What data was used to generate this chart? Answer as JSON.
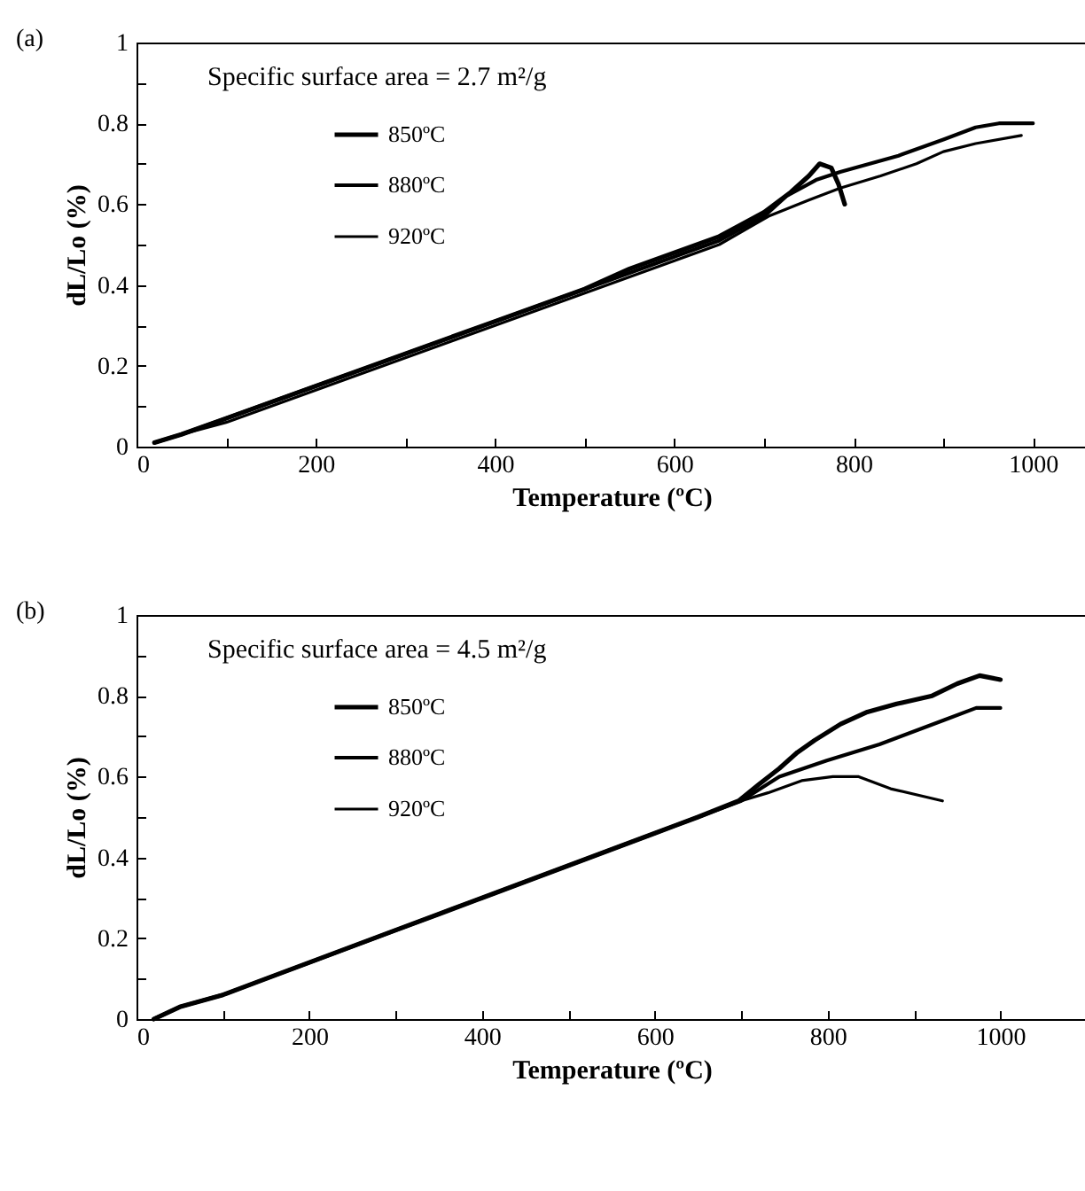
{
  "chart_data": [
    {
      "type": "line",
      "title": "(a)",
      "xlabel": "Temperature (ºC)",
      "ylabel": "dL/Lo (%)",
      "annotations": [
        "Specific surface area = 2.7 m²/g"
      ],
      "legend": "top left",
      "xlim": [
        0,
        1060
      ],
      "ylim": [
        0,
        1
      ],
      "xticks": [
        0,
        {
          "value": 100,
          "label": null
        },
        200,
        {
          "value": 300,
          "label": null
        },
        400,
        {
          "value": 500,
          "label": null
        },
        600,
        {
          "value": 700,
          "label": null
        },
        800,
        {
          "value": 900,
          "label": null
        },
        1000
      ],
      "yticks": [
        0,
        {
          "value": 0.1,
          "label": null
        },
        0.2,
        {
          "value": 0.3,
          "label": null
        },
        0.4,
        {
          "value": 0.5,
          "label": null
        },
        0.6,
        {
          "value": 0.7,
          "label": null
        },
        0.8,
        {
          "value": 0.9,
          "label": null
        },
        1
      ],
      "series": [
        {
          "name": "850ºC",
          "color": "#000000",
          "x": [
            20,
            50,
            100,
            150,
            200,
            250,
            300,
            350,
            400,
            450,
            500,
            550,
            600,
            650,
            700,
            730,
            750,
            762,
            775,
            783,
            790
          ],
          "values": [
            0.01,
            0.03,
            0.07,
            0.11,
            0.15,
            0.19,
            0.23,
            0.27,
            0.31,
            0.35,
            0.39,
            0.44,
            0.48,
            0.52,
            0.58,
            0.63,
            0.67,
            0.7,
            0.69,
            0.65,
            0.6
          ]
        },
        {
          "name": "880ºC",
          "color": "#000000",
          "x": [
            20,
            50,
            100,
            150,
            200,
            250,
            300,
            350,
            400,
            450,
            500,
            550,
            600,
            650,
            700,
            725,
            758,
            785,
            850,
            900,
            936,
            962,
            986,
            1000
          ],
          "values": [
            0.01,
            0.03,
            0.07,
            0.11,
            0.15,
            0.19,
            0.23,
            0.27,
            0.31,
            0.35,
            0.39,
            0.43,
            0.47,
            0.51,
            0.57,
            0.62,
            0.66,
            0.68,
            0.72,
            0.76,
            0.79,
            0.8,
            0.8,
            0.8
          ]
        },
        {
          "name": "920ºC",
          "color": "#000000",
          "x": [
            20,
            50,
            100,
            150,
            200,
            250,
            300,
            350,
            400,
            450,
            500,
            550,
            600,
            650,
            705,
            750,
            785,
            830,
            870,
            900,
            936,
            987
          ],
          "values": [
            0.01,
            0.03,
            0.06,
            0.1,
            0.14,
            0.18,
            0.22,
            0.26,
            0.3,
            0.34,
            0.38,
            0.42,
            0.46,
            0.5,
            0.57,
            0.61,
            0.64,
            0.67,
            0.7,
            0.73,
            0.75,
            0.77
          ]
        }
      ]
    },
    {
      "type": "line",
      "title": "(b)",
      "xlabel": "Temperature (ºC)",
      "ylabel": "dL/Lo (%)",
      "annotations": [
        "Specific surface area = 4.5 m²/g"
      ],
      "legend": "top left",
      "xlim": [
        0,
        1100
      ],
      "ylim": [
        0,
        1
      ],
      "xticks": [
        0,
        {
          "value": 100,
          "label": null
        },
        200,
        {
          "value": 300,
          "label": null
        },
        400,
        {
          "value": 500,
          "label": null
        },
        600,
        {
          "value": 700,
          "label": null
        },
        800,
        {
          "value": 900,
          "label": null
        },
        1000
      ],
      "yticks": [
        0,
        {
          "value": 0.1,
          "label": null
        },
        0.2,
        {
          "value": 0.3,
          "label": null
        },
        0.4,
        {
          "value": 0.5,
          "label": null
        },
        0.6,
        {
          "value": 0.7,
          "label": null
        },
        0.8,
        {
          "value": 0.9,
          "label": null
        },
        1
      ],
      "series": [
        {
          "name": "850ºC",
          "color": "#000000",
          "x": [
            20,
            50,
            100,
            150,
            200,
            250,
            300,
            350,
            400,
            450,
            500,
            550,
            600,
            650,
            697,
            720,
            744,
            765,
            785,
            815,
            846,
            880,
            921,
            950,
            976,
            1000
          ],
          "values": [
            0,
            0.03,
            0.06,
            0.1,
            0.14,
            0.18,
            0.22,
            0.26,
            0.3,
            0.34,
            0.38,
            0.42,
            0.46,
            0.5,
            0.54,
            0.58,
            0.62,
            0.66,
            0.69,
            0.73,
            0.76,
            0.78,
            0.8,
            0.83,
            0.85,
            0.84
          ]
        },
        {
          "name": "880ºC",
          "color": "#000000",
          "x": [
            20,
            50,
            100,
            150,
            200,
            250,
            300,
            350,
            400,
            450,
            500,
            550,
            600,
            650,
            700,
            744,
            799,
            860,
            935,
            972,
            1000
          ],
          "values": [
            0,
            0.03,
            0.06,
            0.1,
            0.14,
            0.18,
            0.22,
            0.26,
            0.3,
            0.34,
            0.38,
            0.42,
            0.46,
            0.5,
            0.54,
            0.6,
            0.64,
            0.68,
            0.74,
            0.77,
            0.77
          ]
        },
        {
          "name": "920ºC",
          "color": "#000000",
          "x": [
            20,
            50,
            100,
            150,
            200,
            250,
            300,
            350,
            400,
            450,
            500,
            550,
            600,
            650,
            700,
            731,
            770,
            806,
            836,
            873,
            933
          ],
          "values": [
            0,
            0.03,
            0.06,
            0.1,
            0.14,
            0.18,
            0.22,
            0.26,
            0.3,
            0.34,
            0.38,
            0.42,
            0.46,
            0.5,
            0.54,
            0.56,
            0.59,
            0.6,
            0.6,
            0.57,
            0.54
          ]
        }
      ]
    }
  ]
}
